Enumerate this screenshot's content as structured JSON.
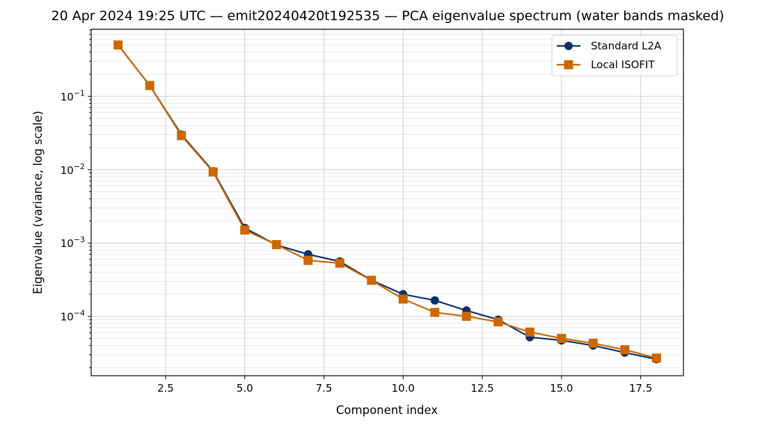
{
  "chart_data": {
    "type": "line",
    "title": "20 Apr 2024 19:25 UTC — emit20240420t192535 — PCA eigenvalue spectrum (water bands masked)",
    "xlabel": "Component index",
    "ylabel": "Eigenvalue (variance, log scale)",
    "xscale": "linear",
    "yscale": "log",
    "xlim": [
      0.15,
      18.85
    ],
    "ylim": [
      1.55e-05,
      0.82
    ],
    "grid": true,
    "legend_position": "top-right",
    "x_ticks": [
      {
        "value": 2.5,
        "label": "2.5"
      },
      {
        "value": 5.0,
        "label": "5.0"
      },
      {
        "value": 7.5,
        "label": "7.5"
      },
      {
        "value": 10.0,
        "label": "10.0"
      },
      {
        "value": 12.5,
        "label": "12.5"
      },
      {
        "value": 15.0,
        "label": "15.0"
      },
      {
        "value": 17.5,
        "label": "17.5"
      }
    ],
    "y_ticks": [
      {
        "value": 0.1,
        "base": "10",
        "exp": "−1"
      },
      {
        "value": 0.01,
        "base": "10",
        "exp": "−2"
      },
      {
        "value": 0.001,
        "base": "10",
        "exp": "−3"
      },
      {
        "value": 0.0001,
        "base": "10",
        "exp": "−4"
      }
    ],
    "x": [
      1,
      2,
      3,
      4,
      5,
      6,
      7,
      8,
      9,
      10,
      11,
      12,
      13,
      14,
      15,
      16,
      17,
      18
    ],
    "series": [
      {
        "name": "Standard L2A",
        "color": "#08306b",
        "marker": "circle",
        "values": [
          0.5,
          0.14,
          0.03,
          0.0095,
          0.0016,
          0.00094,
          0.0007,
          0.00056,
          0.00031,
          0.0002,
          0.000165,
          0.00012,
          9e-05,
          5.2e-05,
          4.7e-05,
          4e-05,
          3.2e-05,
          2.6e-05
        ]
      },
      {
        "name": "Local ISOFIT",
        "color": "#cc6600",
        "marker": "square",
        "values": [
          0.5,
          0.14,
          0.029,
          0.0093,
          0.0015,
          0.00095,
          0.00058,
          0.00053,
          0.00031,
          0.000172,
          0.000113,
          0.0001,
          8.4e-05,
          6.1e-05,
          5e-05,
          4.3e-05,
          3.5e-05,
          2.7e-05
        ]
      }
    ]
  }
}
